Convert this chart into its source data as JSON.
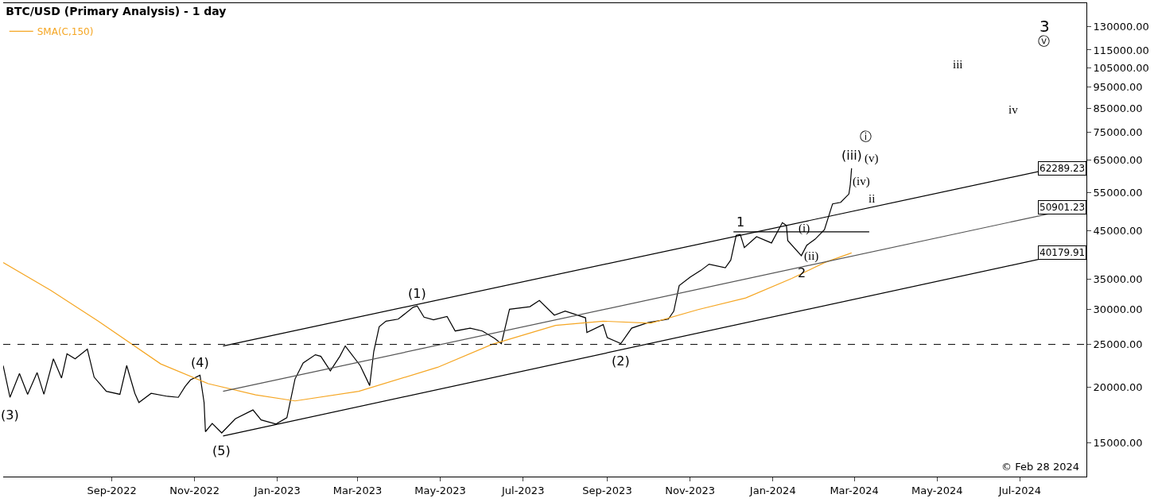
{
  "chart_data": {
    "type": "line",
    "title": "BTC/USD (Primary Analysis) - 1 day",
    "log": "y",
    "legend": "top left",
    "xlim": [
      "2022-06-13",
      "2024-08-19"
    ],
    "xticks": [
      {
        "value": "2022-09-01",
        "label": "Sep-2022"
      },
      {
        "value": "2022-11-01",
        "label": "Nov-2022"
      },
      {
        "value": "2023-01-01",
        "label": "Jan-2023"
      },
      {
        "value": "2023-03-01",
        "label": "Mar-2023"
      },
      {
        "value": "2023-05-01",
        "label": "May-2023"
      },
      {
        "value": "2023-07-01",
        "label": "Jul-2023"
      },
      {
        "value": "2023-09-01",
        "label": "Sep-2023"
      },
      {
        "value": "2023-11-01",
        "label": "Nov-2023"
      },
      {
        "value": "2024-01-01",
        "label": "Jan-2024"
      },
      {
        "value": "2024-03-01",
        "label": "Mar-2024"
      },
      {
        "value": "2024-05-01",
        "label": "May-2024"
      },
      {
        "value": "2024-07-01",
        "label": "Jul-2024"
      }
    ],
    "ylim": [
      12600,
      146600
    ],
    "yticks": [
      {
        "value": 15000,
        "label": "15000.00"
      },
      {
        "value": 20000,
        "label": "20000.00"
      },
      {
        "value": 25000,
        "label": "25000.00"
      },
      {
        "value": 30000,
        "label": "30000.00"
      },
      {
        "value": 35000,
        "label": "35000.00"
      },
      {
        "value": 45000,
        "label": "45000.00"
      },
      {
        "value": 55000,
        "label": "55000.00"
      },
      {
        "value": 65000,
        "label": "65000.00"
      },
      {
        "value": 75000,
        "label": "75000.00"
      },
      {
        "value": 85000,
        "label": "85000.00"
      },
      {
        "value": 95000,
        "label": "95000.00"
      },
      {
        "value": 105000,
        "label": "105000.00"
      },
      {
        "value": 115000,
        "label": "115000.00"
      },
      {
        "value": 130000,
        "label": "130000.00"
      }
    ],
    "series": [
      {
        "color": "#000000",
        "x": [
          "2022-06-13",
          "2022-06-18",
          "2022-06-25",
          "2022-07-01",
          "2022-07-08",
          "2022-07-13",
          "2022-07-20",
          "2022-07-26",
          "2022-07-30",
          "2022-08-05",
          "2022-08-14",
          "2022-08-19",
          "2022-08-28",
          "2022-09-07",
          "2022-09-12",
          "2022-09-18",
          "2022-09-21",
          "2022-09-30",
          "2022-10-12",
          "2022-10-20",
          "2022-10-25",
          "2022-10-29",
          "2022-11-05",
          "2022-11-08",
          "2022-11-09",
          "2022-11-14",
          "2022-11-21",
          "2022-12-01",
          "2022-12-14",
          "2022-12-20",
          "2022-12-31",
          "2023-01-08",
          "2023-01-14",
          "2023-01-20",
          "2023-01-29",
          "2023-02-02",
          "2023-02-09",
          "2023-02-16",
          "2023-02-20",
          "2023-03-03",
          "2023-03-10",
          "2023-03-13",
          "2023-03-17",
          "2023-03-22",
          "2023-03-31",
          "2023-04-11",
          "2023-04-14",
          "2023-04-19",
          "2023-04-26",
          "2023-05-06",
          "2023-05-12",
          "2023-05-23",
          "2023-06-01",
          "2023-06-10",
          "2023-06-15",
          "2023-06-21",
          "2023-07-06",
          "2023-07-13",
          "2023-07-24",
          "2023-08-01",
          "2023-08-16",
          "2023-08-17",
          "2023-08-29",
          "2023-09-01",
          "2023-09-11",
          "2023-09-19",
          "2023-10-01",
          "2023-10-16",
          "2023-10-20",
          "2023-10-24",
          "2023-11-01",
          "2023-11-09",
          "2023-11-15",
          "2023-11-27",
          "2023-12-01",
          "2023-12-05",
          "2023-12-08",
          "2023-12-11",
          "2023-12-20",
          "2023-12-31",
          "2024-01-08",
          "2024-01-11",
          "2024-01-12",
          "2024-01-22",
          "2024-01-26",
          "2024-02-01",
          "2024-02-08",
          "2024-02-14",
          "2024-02-20",
          "2024-02-26",
          "2024-02-27",
          "2024-02-28"
        ],
        "values": [
          22400,
          19000,
          21500,
          19300,
          21600,
          19300,
          23200,
          21000,
          23800,
          23200,
          24400,
          21100,
          19600,
          19300,
          22400,
          19400,
          18500,
          19400,
          19100,
          19000,
          20100,
          20800,
          21300,
          18500,
          15900,
          16600,
          15800,
          17000,
          17800,
          16900,
          16550,
          17100,
          20900,
          22700,
          23700,
          23500,
          21800,
          23500,
          24800,
          22400,
          20200,
          24100,
          27400,
          28200,
          28500,
          30300,
          30500,
          28800,
          28400,
          28900,
          26800,
          27200,
          26800,
          25800,
          25100,
          30000,
          30400,
          31400,
          29100,
          29700,
          28700,
          26600,
          27700,
          25900,
          25100,
          27200,
          28000,
          28500,
          29700,
          33900,
          35400,
          36700,
          37900,
          37200,
          38700,
          44000,
          44200,
          41300,
          43700,
          42300,
          47000,
          46300,
          42800,
          39600,
          41800,
          43100,
          45300,
          51800,
          52200,
          54500,
          57000,
          62289.23
        ]
      },
      {
        "name": "SMA(C,150)",
        "color": "#f5a623",
        "x": [
          "2022-06-13",
          "2022-07-18",
          "2022-08-22",
          "2022-10-07",
          "2022-11-11",
          "2022-12-16",
          "2023-01-14",
          "2023-03-02",
          "2023-04-29",
          "2023-06-08",
          "2023-07-25",
          "2023-08-29",
          "2023-10-03",
          "2023-11-07",
          "2023-12-12",
          "2024-01-15",
          "2024-02-08",
          "2024-02-28"
        ],
        "values": [
          38200,
          33100,
          28200,
          22600,
          20400,
          19250,
          18650,
          19600,
          22200,
          25000,
          27600,
          28200,
          27900,
          29950,
          31800,
          35200,
          38200,
          40179.91
        ]
      },
      {
        "color": "#000000",
        "x": [
          "2022-11-22",
          "2024-08-19"
        ],
        "values": [
          24800,
          64600
        ]
      },
      {
        "color": "#555555",
        "x": [
          "2022-11-22",
          "2024-08-19"
        ],
        "values": [
          19600,
          51300
        ]
      },
      {
        "color": "#000000",
        "x": [
          "2022-11-22",
          "2024-08-19"
        ],
        "values": [
          15550,
          41000
        ]
      },
      {
        "color": "#000000",
        "x": [
          "2023-12-03",
          "2024-03-12"
        ],
        "values": [
          44800,
          44800
        ]
      }
    ],
    "ref_lines": [
      {
        "axis": "y",
        "value": 25000,
        "color": "#000000",
        "line_style": "dashed"
      }
    ],
    "annotations": [
      {
        "text": "(3)",
        "x": "2022-06-18",
        "y": 19000
      },
      {
        "text": "(4)",
        "x": "2022-11-05",
        "y": 21300
      },
      {
        "text": "(5)",
        "x": "2022-11-21",
        "y": 15800
      },
      {
        "text": "(1)",
        "x": "2023-04-14",
        "y": 30500
      },
      {
        "text": "(2)",
        "x": "2023-09-11",
        "y": 25100
      },
      {
        "text": "1",
        "x": "2023-12-08",
        "y": 44200
      },
      {
        "text": "2",
        "x": "2024-01-22",
        "y": 39600
      },
      "(i)",
      {
        "text": "(iii)",
        "x": "2024-02-28",
        "y": 62289.23
      },
      "(ii)",
      "(iv)",
      "(v)",
      "ⓘ",
      "ii",
      "iii",
      "iv",
      "ⓥ",
      "3",
      {
        "text": "62289.23",
        "y": 62289.23
      },
      {
        "text": "50901.23",
        "y": 50901.23
      },
      {
        "text": "40179.91",
        "y": 40179.91
      },
      "© Feb 28 2024"
    ]
  }
}
